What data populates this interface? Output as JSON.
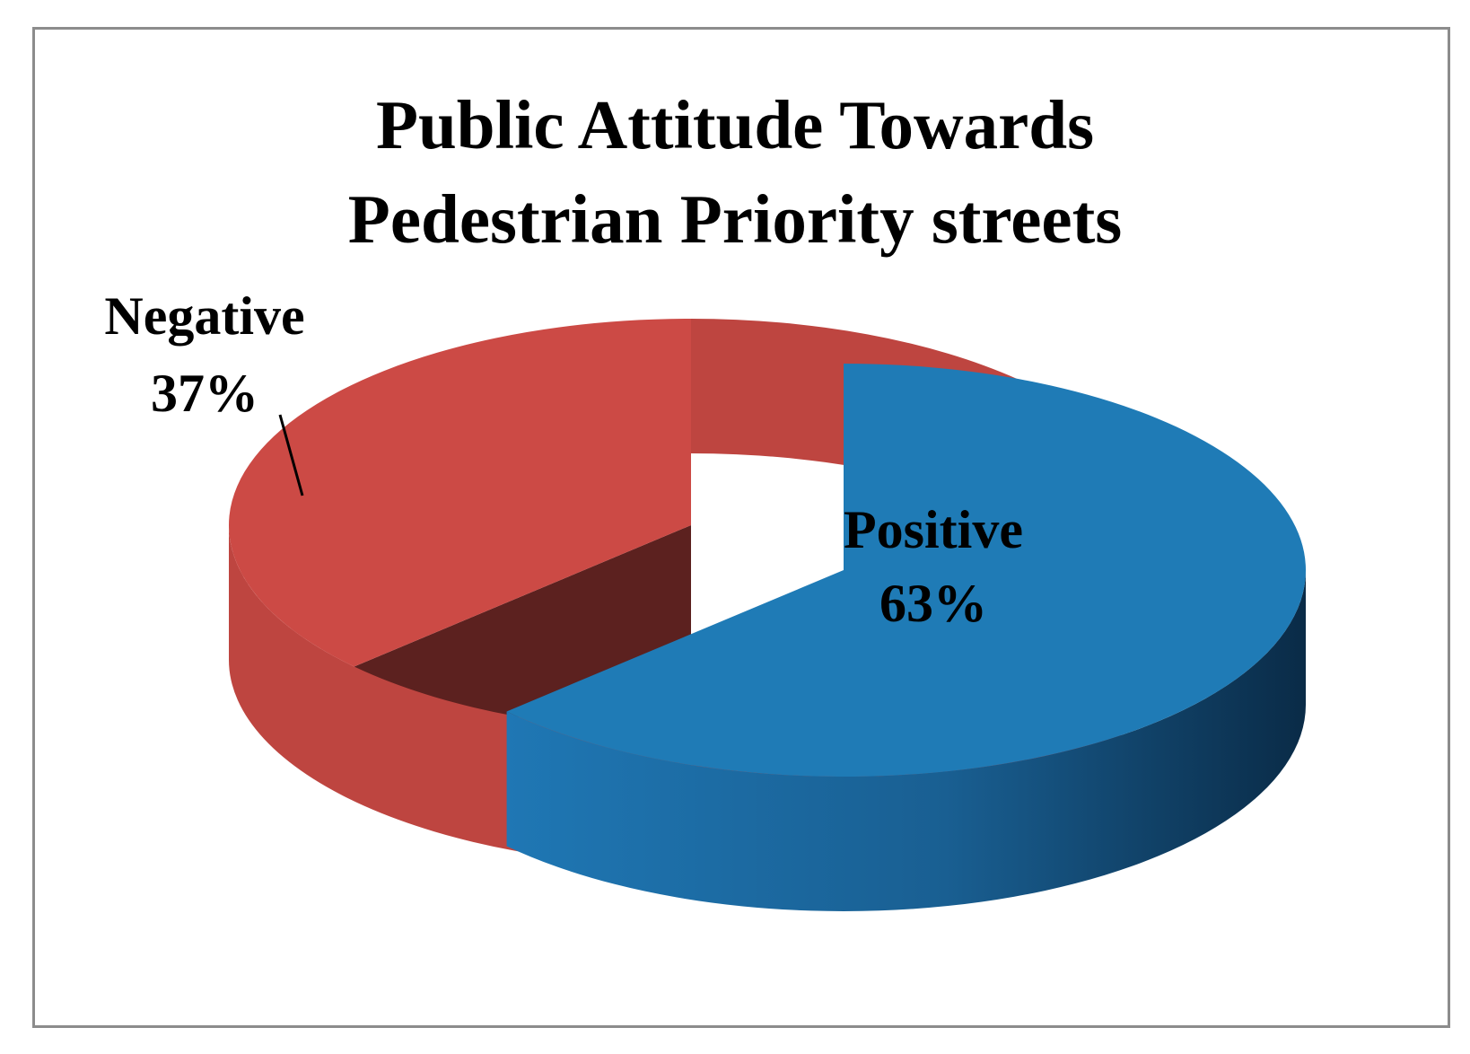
{
  "chart_data": {
    "type": "pie",
    "three_d": true,
    "exploded": true,
    "title": "Public Attitude Towards Pedestrian Priority streets",
    "title_lines": [
      "Public Attitude Towards",
      "Pedestrian Priority streets"
    ],
    "slices": [
      {
        "name": "Positive",
        "value": 63,
        "label_value": "63%",
        "color": "#1f7bb6"
      },
      {
        "name": "Negative",
        "value": 37,
        "label_value": "37%",
        "color": "#cc4a45"
      }
    ],
    "legend": "none",
    "data_labels": "category and percentage"
  }
}
